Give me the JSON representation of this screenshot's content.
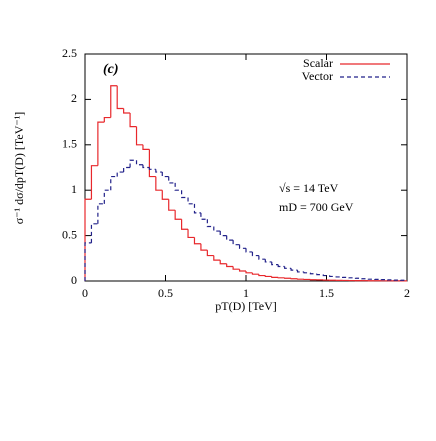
{
  "chart_data": {
    "type": "histogram",
    "ylabel": "σ⁻¹ dσ/dpT(D) [TeV⁻¹]",
    "xlabel": "pT(D) [TeV]",
    "annotations": [
      "(c)",
      "√s = 14 TeV",
      "mD = 700 GeV"
    ],
    "bins": [
      0,
      0.04,
      0.08,
      0.12,
      0.16,
      0.2,
      0.24,
      0.28,
      0.32,
      0.36,
      0.4,
      0.44,
      0.48,
      0.52,
      0.56,
      0.6,
      0.64,
      0.68,
      0.72,
      0.76,
      0.8,
      0.84,
      0.88,
      0.92,
      0.96,
      1,
      1.04,
      1.08,
      1.12,
      1.16,
      1.2,
      1.24,
      1.28,
      1.32,
      1.36,
      1.4,
      1.44,
      1.48,
      1.52,
      1.56,
      1.6,
      1.64,
      1.68,
      1.72,
      1.76,
      1.8,
      1.84,
      1.88,
      1.92,
      1.96,
      2
    ],
    "series": [
      {
        "name": "Scalar",
        "color": "#e8282c",
        "dash": false,
        "values": [
          0.9,
          1.27,
          1.75,
          1.8,
          2.15,
          1.9,
          1.85,
          1.7,
          1.5,
          1.45,
          1.15,
          1.0,
          0.9,
          0.78,
          0.68,
          0.57,
          0.48,
          0.41,
          0.34,
          0.28,
          0.23,
          0.19,
          0.16,
          0.13,
          0.11,
          0.09,
          0.075,
          0.06,
          0.05,
          0.04,
          0.035,
          0.03,
          0.025,
          0.02,
          0.017,
          0.014,
          0.012,
          0.01,
          0.008,
          0.007,
          0.006,
          0.005,
          0.004,
          0.004,
          0.003,
          0.003,
          0.002,
          0.002,
          0.002,
          0.001
        ]
      },
      {
        "name": "Vector",
        "color": "#22228a",
        "dash": true,
        "values": [
          0.42,
          0.63,
          0.85,
          1.0,
          1.15,
          1.2,
          1.25,
          1.33,
          1.28,
          1.25,
          1.23,
          1.2,
          1.15,
          1.08,
          1.0,
          0.92,
          0.85,
          0.75,
          0.68,
          0.6,
          0.55,
          0.5,
          0.45,
          0.4,
          0.36,
          0.32,
          0.28,
          0.24,
          0.21,
          0.18,
          0.16,
          0.14,
          0.12,
          0.1,
          0.09,
          0.08,
          0.07,
          0.06,
          0.05,
          0.045,
          0.04,
          0.035,
          0.03,
          0.025,
          0.02,
          0.018,
          0.015,
          0.012,
          0.01,
          0.008
        ]
      }
    ],
    "xlim": [
      0,
      2
    ],
    "xticks": [
      0,
      0.5,
      1,
      1.5,
      2
    ],
    "ylim": [
      0,
      2.5
    ],
    "yticks": [
      0,
      0.5,
      1,
      1.5,
      2,
      2.5
    ],
    "legend": "upper right"
  }
}
